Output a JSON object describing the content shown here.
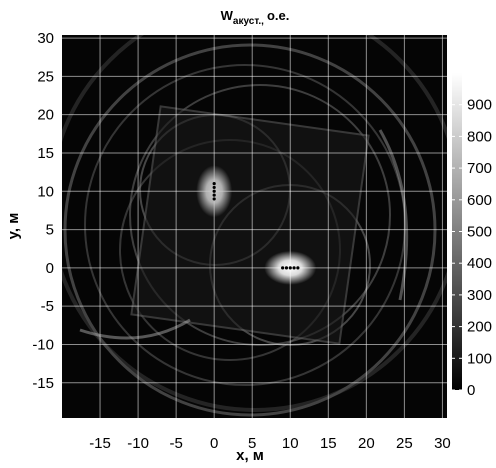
{
  "chart_data": {
    "type": "heatmap",
    "title": "W",
    "title_subscript": "акуст.,",
    "title_suffix": "o.e.",
    "xlabel": "x, м",
    "ylabel": "y, м",
    "xlim": [
      -20,
      30.6
    ],
    "ylim": [
      -19.6,
      30.4
    ],
    "xticks": [
      -15,
      -10,
      -5,
      0,
      5,
      10,
      15,
      20,
      25,
      30
    ],
    "yticks": [
      -15,
      -10,
      -5,
      0,
      5,
      10,
      15,
      20,
      25,
      30
    ],
    "grid": true,
    "colorlim": [
      0,
      1000
    ],
    "colorticks": [
      0,
      100,
      200,
      300,
      400,
      500,
      600,
      700,
      800,
      900
    ],
    "hotspots": {
      "x": [
        0,
        10
      ],
      "y": [
        10,
        0
      ],
      "values": [
        800,
        1000
      ]
    },
    "sources": [
      {
        "x": [
          0,
          0,
          0,
          0,
          0
        ],
        "y": [
          9,
          9.5,
          10,
          10.5,
          11
        ],
        "color": "#000000"
      },
      {
        "x": [
          9,
          9.5,
          10,
          10.5,
          11
        ],
        "y": [
          0,
          0,
          0,
          0,
          0
        ],
        "color": "#000000"
      }
    ]
  }
}
